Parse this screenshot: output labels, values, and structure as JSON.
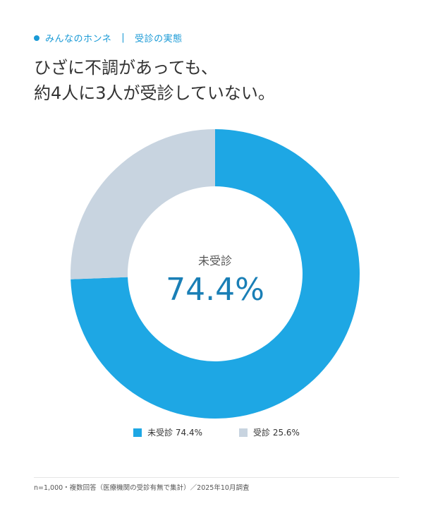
{
  "eyebrow": {
    "section": "みんなのホンネ",
    "separator": "|",
    "topic": "受診の実態"
  },
  "headline": {
    "line1": "ひざに不調があっても、",
    "line2": "約4人に3人が受診していない。"
  },
  "center_label": {
    "caption": "未受診",
    "value": "74.4%"
  },
  "legend": [
    {
      "label": "未受診 74.4%",
      "color": "#1ea7e4"
    },
    {
      "label": "受診 25.6%",
      "color": "#c8d4e0"
    }
  ],
  "footnote": "n=1,000・複数回答（医療機関の受診有無で集計）／2025年10月調査",
  "colors": {
    "accent": "#1a9ad6",
    "primary_slice": "#1ea7e4",
    "secondary_slice": "#c8d4e0",
    "center_value": "#1a7fb6"
  },
  "chart_data": {
    "type": "pie",
    "variant": "donut",
    "categories": [
      "未受診",
      "受診"
    ],
    "values": [
      74.4,
      25.6
    ],
    "unit": "%",
    "legend_position": "bottom"
  }
}
